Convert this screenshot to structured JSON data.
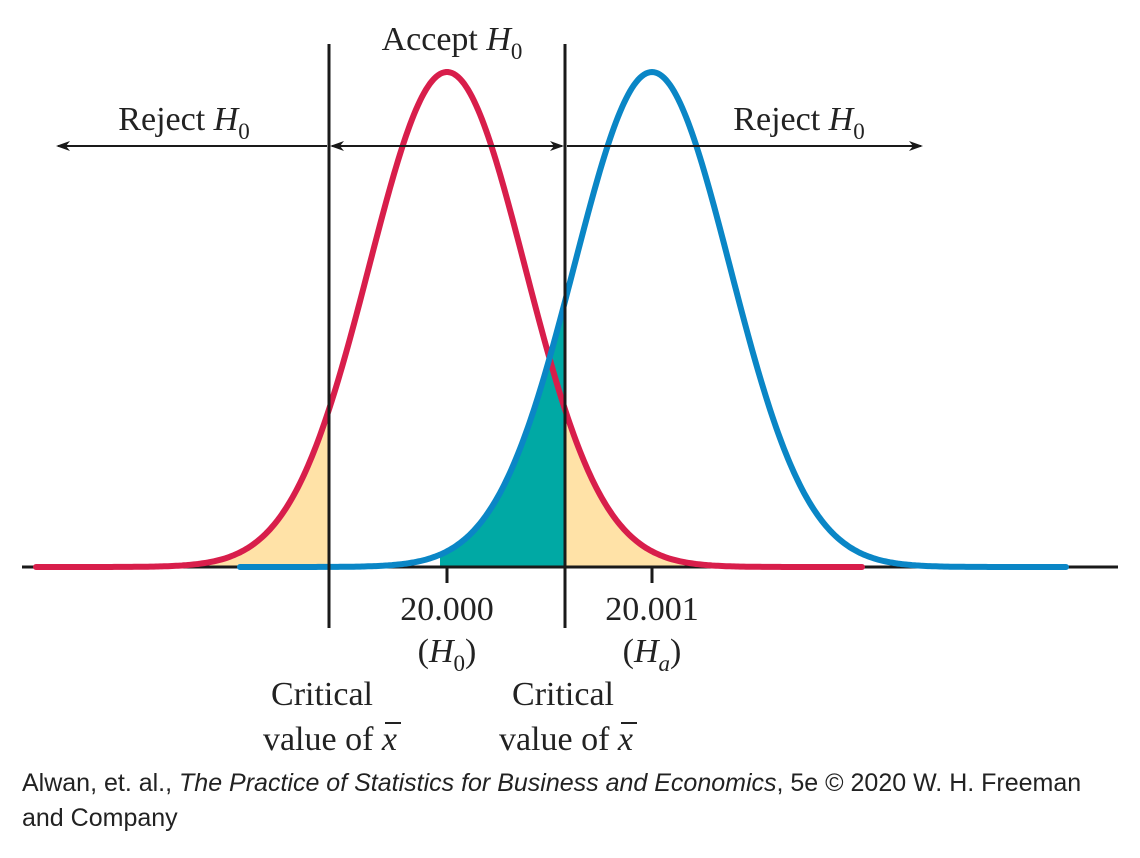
{
  "labels": {
    "accept": "Accept",
    "reject_left": "Reject",
    "reject_right": "Reject",
    "h": "H",
    "sub_zero": "0",
    "sub_a": "a",
    "value_h0": "20.000",
    "value_ha": "20.001",
    "critical_word": "Critical",
    "value_of": "value of",
    "xbar": "x",
    "lparen": "(",
    "rparen": ")"
  },
  "colors": {
    "h0_curve": "#d81e4b",
    "ha_curve": "#0a86c6",
    "type1_error_fill": "#ffe2a7",
    "type2_error_fill": "#00a9a4",
    "lines": "#1a1a1a"
  },
  "credit": {
    "prefix": "Alwan, et. al., ",
    "book": "The Practice of Statistics for Business and Economics",
    "suffix": ", 5e © 2020 W. H. Freeman and Company"
  }
}
